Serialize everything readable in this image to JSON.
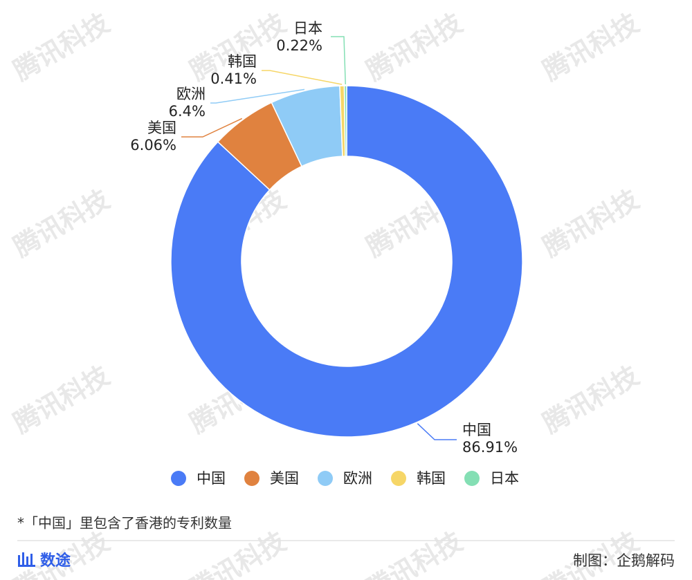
{
  "chart_data": {
    "type": "donut",
    "categories": [
      "中国",
      "美国",
      "欧洲",
      "韩国",
      "日本"
    ],
    "values": [
      86.91,
      6.06,
      6.4,
      0.41,
      0.22
    ],
    "value_labels": [
      "86.91%",
      "6.06%",
      "6.4%",
      "0.41%",
      "0.22%"
    ],
    "colors": [
      "#4a7bf6",
      "#e0823f",
      "#8fcbf6",
      "#f6d667",
      "#84dfb4"
    ],
    "legend": "bottom"
  },
  "footnote": "*「中国」里包含了香港的专利数量",
  "brand": "数途",
  "credit": "制图：企鹅解码",
  "watermark": "腾讯科技"
}
